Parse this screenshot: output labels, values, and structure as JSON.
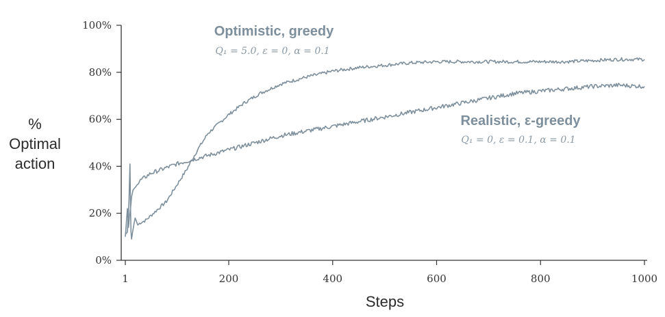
{
  "chart_data": {
    "type": "line",
    "xlabel": "Steps",
    "ylabel_lines": [
      "%",
      "Optimal",
      "action"
    ],
    "xlim": [
      1,
      1000
    ],
    "ylim": [
      0,
      100
    ],
    "x_ticks": [
      1,
      200,
      400,
      600,
      800,
      1000
    ],
    "x_tick_labels": [
      "1",
      "200",
      "400",
      "600",
      "800",
      "1000"
    ],
    "y_ticks": [
      0,
      20,
      40,
      60,
      80,
      100
    ],
    "y_tick_labels": [
      "0%",
      "20%",
      "40%",
      "60%",
      "80%",
      "100%"
    ],
    "grid": false,
    "legend": "inline annotations",
    "line_color": "#7d8f9c",
    "series": [
      {
        "name": "Optimistic, greedy",
        "params": "Q₁ = 5.0, ε = 0, α = 0.1",
        "x": [
          1,
          5,
          8,
          10,
          11,
          12,
          13,
          15,
          18,
          20,
          25,
          30,
          40,
          60,
          80,
          100,
          120,
          140,
          160,
          180,
          200,
          230,
          260,
          300,
          350,
          400,
          450,
          500,
          550,
          600,
          650,
          700,
          750,
          800,
          850,
          900,
          950,
          1000
        ],
        "y": [
          11,
          12,
          25,
          41,
          22,
          12,
          9,
          12,
          16,
          18,
          15,
          16,
          17,
          21,
          25,
          32,
          39,
          47,
          54,
          58,
          62,
          67,
          71,
          75,
          78,
          80.5,
          82,
          83,
          84,
          84.5,
          84.5,
          84.5,
          84.5,
          84.5,
          84.5,
          85,
          85.5,
          85.5
        ]
      },
      {
        "name": "Realistic, ε-greedy",
        "params": "Q₁ = 0, ε = 0.1, α = 0.1",
        "x": [
          1,
          3,
          5,
          7,
          9,
          11,
          13,
          16,
          20,
          30,
          50,
          75,
          100,
          150,
          200,
          250,
          300,
          350,
          400,
          450,
          500,
          550,
          600,
          650,
          700,
          750,
          800,
          850,
          900,
          950,
          1000
        ],
        "y": [
          10,
          16,
          22,
          14,
          19,
          22,
          27,
          30,
          31,
          34,
          37,
          39,
          41,
          44,
          47,
          50,
          53,
          55,
          57,
          59,
          61,
          63,
          65,
          67,
          69,
          71,
          72,
          73,
          74,
          74.5,
          74
        ]
      }
    ]
  }
}
